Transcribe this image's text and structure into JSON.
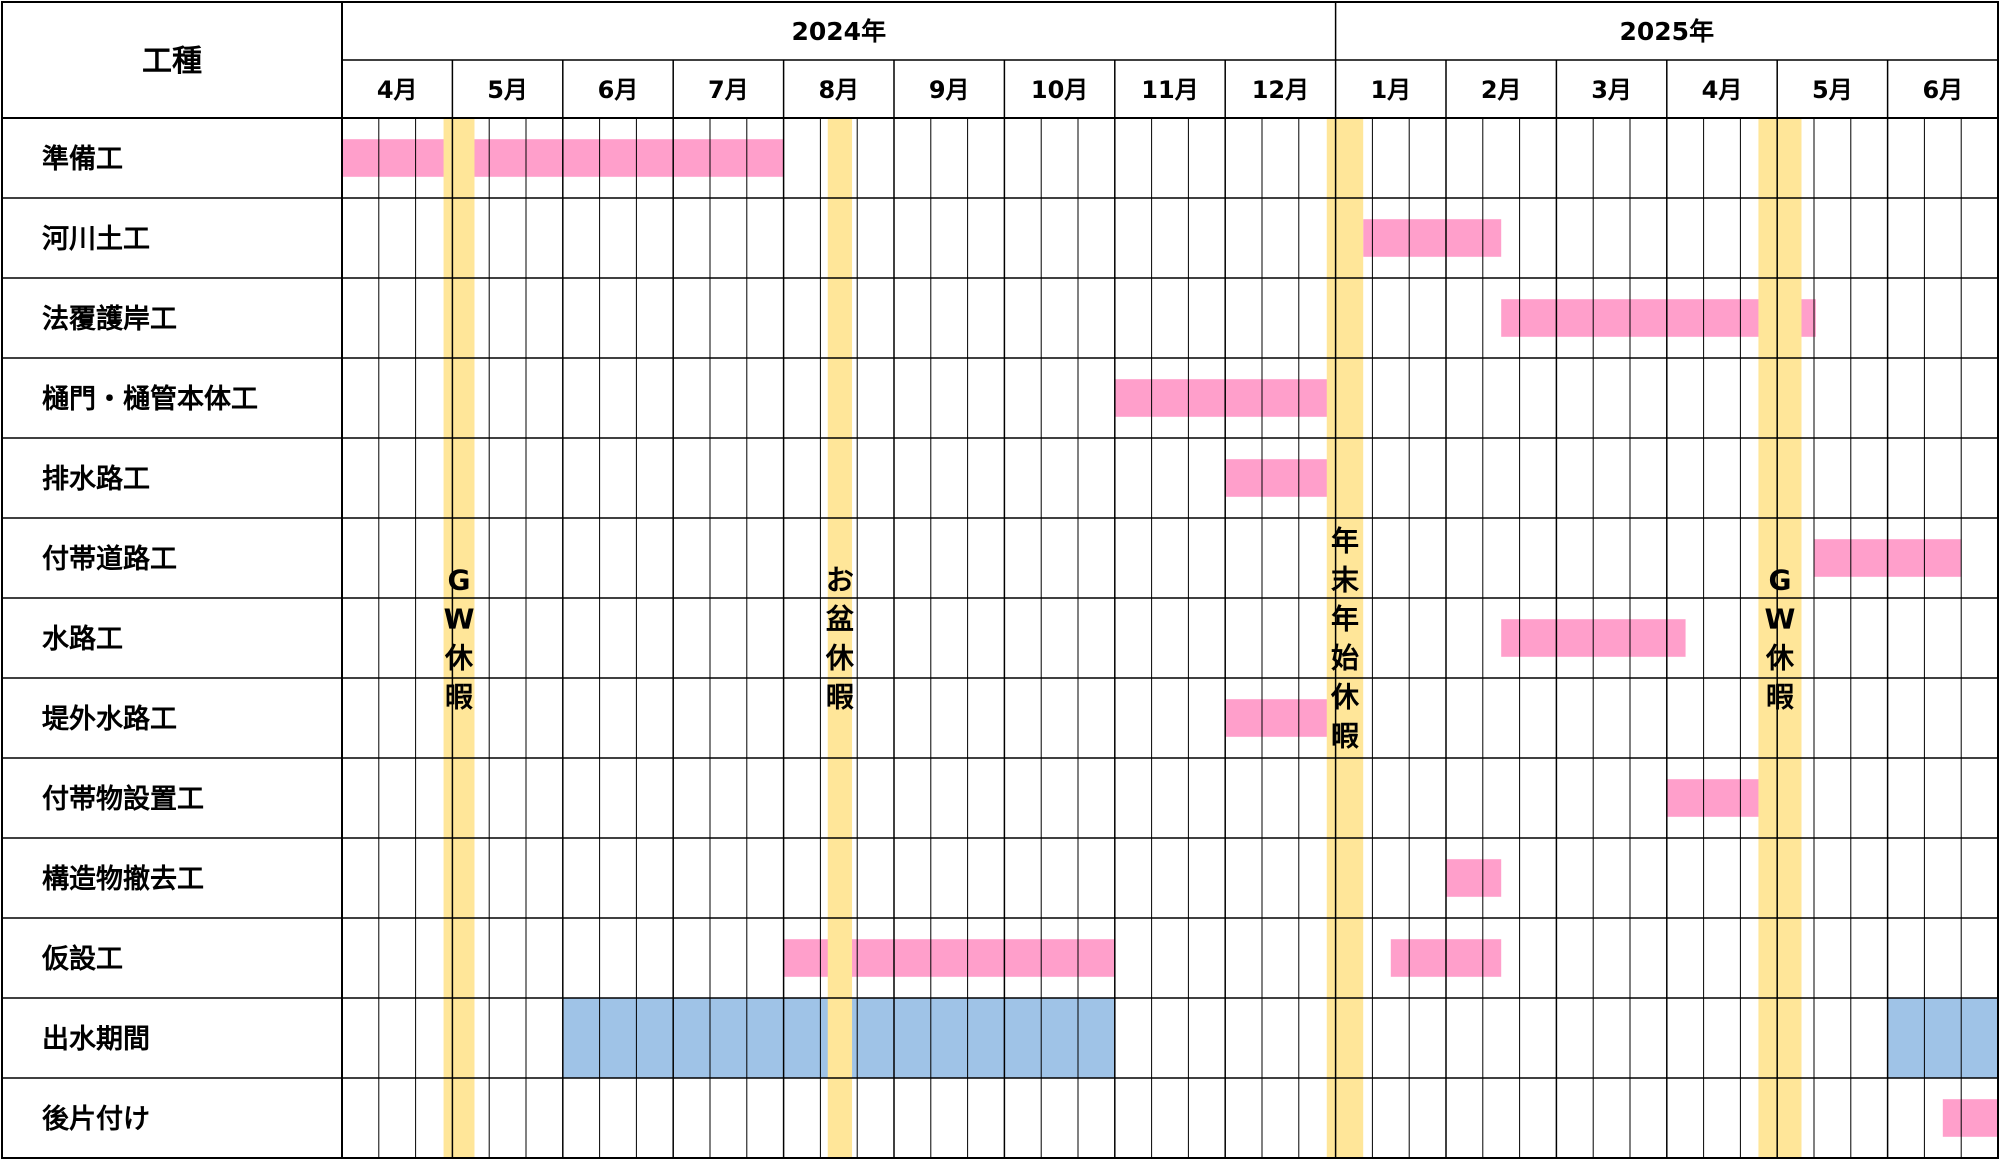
{
  "chart_data": {
    "type": "gantt",
    "header_label": "工種",
    "years": [
      {
        "label": "2024年",
        "months": [
          "4月",
          "5月",
          "6月",
          "7月",
          "8月",
          "9月",
          "10月",
          "11月",
          "12月"
        ]
      },
      {
        "label": "2025年",
        "months": [
          "1月",
          "2月",
          "3月",
          "4月",
          "5月",
          "6月"
        ]
      }
    ],
    "subdivisions_per_month": 3,
    "tasks": [
      {
        "name": "準備工",
        "bars": [
          {
            "start": 0.0,
            "end": 4.0
          }
        ]
      },
      {
        "name": "河川土工",
        "bars": [
          {
            "start": 9.25,
            "end": 10.5
          }
        ]
      },
      {
        "name": "法覆護岸工",
        "bars": [
          {
            "start": 10.5,
            "end": 13.35
          }
        ]
      },
      {
        "name": "樋門・樋管本体工",
        "bars": [
          {
            "start": 7.0,
            "end": 9.0
          }
        ]
      },
      {
        "name": "排水路工",
        "bars": [
          {
            "start": 8.0,
            "end": 9.0
          }
        ]
      },
      {
        "name": "付帯道路工",
        "bars": [
          {
            "start": 13.33,
            "end": 14.67
          }
        ]
      },
      {
        "name": "水路工",
        "bars": [
          {
            "start": 10.5,
            "end": 12.17
          }
        ]
      },
      {
        "name": "堤外水路工",
        "bars": [
          {
            "start": 8.0,
            "end": 9.0
          }
        ]
      },
      {
        "name": "付帯物設置工",
        "bars": [
          {
            "start": 12.0,
            "end": 13.0
          }
        ]
      },
      {
        "name": "構造物撤去工",
        "bars": [
          {
            "start": 10.0,
            "end": 10.5
          }
        ]
      },
      {
        "name": "仮設工",
        "bars": [
          {
            "start": 4.0,
            "end": 7.0
          },
          {
            "start": 9.5,
            "end": 10.5
          }
        ]
      },
      {
        "name": "出水期間",
        "bars": [
          {
            "start": 2.0,
            "end": 7.0
          },
          {
            "start": 14.0,
            "end": 15.0
          }
        ],
        "kind": "flood"
      },
      {
        "name": "後片付け",
        "bars": [
          {
            "start": 14.5,
            "end": 15.0
          }
        ]
      }
    ],
    "holidays": [
      {
        "label": "GW休暇",
        "start": 0.92,
        "end": 1.2
      },
      {
        "label": "お盆休暇",
        "start": 4.4,
        "end": 4.62
      },
      {
        "label": "年末年始休暇",
        "start": 8.92,
        "end": 9.25
      },
      {
        "label": "GW休暇",
        "start": 12.83,
        "end": 13.22
      }
    ],
    "colors": {
      "work_bar": "#ff9fcb",
      "flood_bar": "#9fc3e7",
      "holiday": "#ffe699",
      "grid": "#000000"
    }
  }
}
